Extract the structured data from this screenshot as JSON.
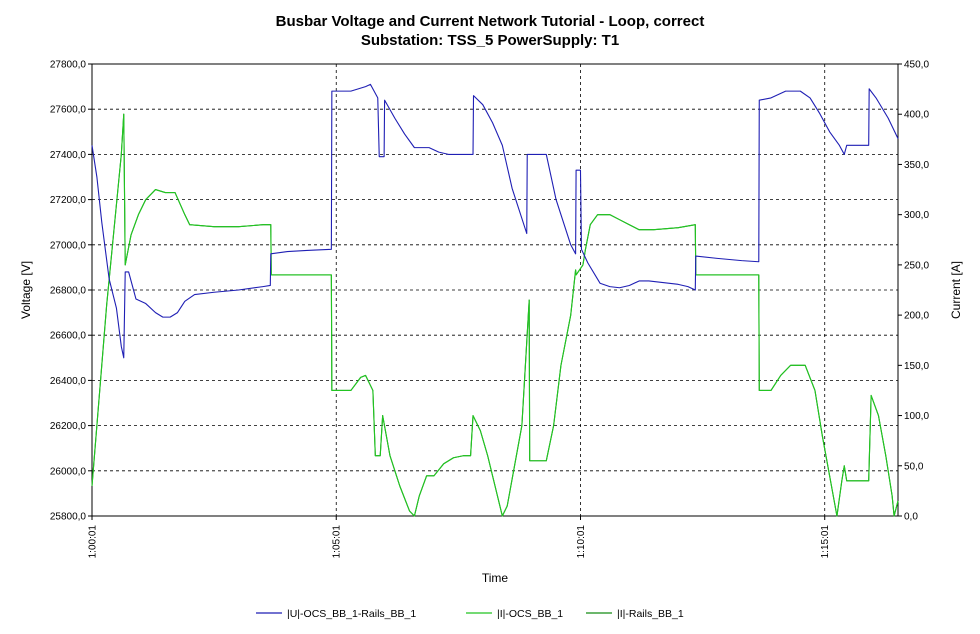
{
  "chart_data": {
    "type": "line",
    "title": "Busbar Voltage and Current Network Tutorial - Loop, correct",
    "subtitle": "Substation: TSS_5 PowerSupply: T1",
    "xlabel": "Time",
    "ylabel_left": "Voltage [V]",
    "ylabel_right": "Current [A]",
    "x_unit": "minutes after 1:00:00",
    "xlim": [
      1.0,
      17.5
    ],
    "x_ticks": [
      {
        "x": 1,
        "label": "1:00:01"
      },
      {
        "x": 6,
        "label": "1:05:01"
      },
      {
        "x": 11,
        "label": "1:10:01"
      },
      {
        "x": 16,
        "label": "1:15:01"
      }
    ],
    "ylim_left": [
      25800,
      27800
    ],
    "ylim_right": [
      0,
      450
    ],
    "y_ticks_left": [
      "25800,0",
      "26000,0",
      "26200,0",
      "26400,0",
      "26600,0",
      "26800,0",
      "27000,0",
      "27200,0",
      "27400,0",
      "27600,0",
      "27800,0"
    ],
    "y_ticks_right": [
      "0,0",
      "50,0",
      "100,0",
      "150,0",
      "200,0",
      "250,0",
      "300,0",
      "350,0",
      "400,0",
      "450,0"
    ],
    "grid": true,
    "legend_position": "bottom",
    "colors": {
      "voltage": "#1f1fb4",
      "ocs": "#22c422",
      "rails": "#148c14",
      "grid": "#000000"
    },
    "series": [
      {
        "name": "|U|-OCS_BB_1-Rails_BB_1",
        "axis": "left",
        "color": "#1f1fb4",
        "width": 1.1,
        "points": [
          [
            1.0,
            27440
          ],
          [
            1.1,
            27300
          ],
          [
            1.2,
            27100
          ],
          [
            1.35,
            26850
          ],
          [
            1.5,
            26720
          ],
          [
            1.6,
            26550
          ],
          [
            1.65,
            26500
          ],
          [
            1.68,
            26880
          ],
          [
            1.75,
            26880
          ],
          [
            1.9,
            26760
          ],
          [
            2.1,
            26740
          ],
          [
            2.3,
            26700
          ],
          [
            2.45,
            26680
          ],
          [
            2.6,
            26680
          ],
          [
            2.75,
            26700
          ],
          [
            2.9,
            26750
          ],
          [
            3.1,
            26780
          ],
          [
            3.5,
            26790
          ],
          [
            4.0,
            26800
          ],
          [
            4.5,
            26815
          ],
          [
            4.65,
            26820
          ],
          [
            4.66,
            26960
          ],
          [
            5.0,
            26970
          ],
          [
            5.4,
            26975
          ],
          [
            5.9,
            26980
          ],
          [
            5.91,
            27680
          ],
          [
            6.3,
            27680
          ],
          [
            6.6,
            27700
          ],
          [
            6.7,
            27710
          ],
          [
            6.85,
            27650
          ],
          [
            6.88,
            27390
          ],
          [
            6.98,
            27390
          ],
          [
            6.99,
            27640
          ],
          [
            7.2,
            27560
          ],
          [
            7.4,
            27490
          ],
          [
            7.6,
            27430
          ],
          [
            7.9,
            27430
          ],
          [
            8.1,
            27410
          ],
          [
            8.3,
            27400
          ],
          [
            8.8,
            27400
          ],
          [
            8.81,
            27660
          ],
          [
            9.0,
            27620
          ],
          [
            9.2,
            27540
          ],
          [
            9.4,
            27440
          ],
          [
            9.6,
            27250
          ],
          [
            9.9,
            27050
          ],
          [
            9.91,
            27400
          ],
          [
            10.3,
            27400
          ],
          [
            10.5,
            27200
          ],
          [
            10.8,
            27000
          ],
          [
            10.9,
            26960
          ],
          [
            10.91,
            27330
          ],
          [
            11.0,
            27330
          ],
          [
            11.02,
            26980
          ],
          [
            11.15,
            26920
          ],
          [
            11.4,
            26830
          ],
          [
            11.6,
            26815
          ],
          [
            11.8,
            26810
          ],
          [
            12.0,
            26820
          ],
          [
            12.2,
            26840
          ],
          [
            12.4,
            26840
          ],
          [
            12.8,
            26830
          ],
          [
            13.0,
            26825
          ],
          [
            13.2,
            26815
          ],
          [
            13.35,
            26800
          ],
          [
            13.36,
            26950
          ],
          [
            13.8,
            26940
          ],
          [
            14.3,
            26930
          ],
          [
            14.65,
            26925
          ],
          [
            14.66,
            27640
          ],
          [
            14.9,
            27650
          ],
          [
            15.2,
            27680
          ],
          [
            15.5,
            27680
          ],
          [
            15.7,
            27650
          ],
          [
            15.9,
            27580
          ],
          [
            16.1,
            27500
          ],
          [
            16.3,
            27440
          ],
          [
            16.4,
            27400
          ],
          [
            16.45,
            27440
          ],
          [
            16.9,
            27440
          ],
          [
            16.91,
            27690
          ],
          [
            17.05,
            27650
          ],
          [
            17.3,
            27560
          ],
          [
            17.5,
            27470
          ]
        ]
      },
      {
        "name": "|I|-OCS_BB_1",
        "axis": "right",
        "color": "#22c422",
        "width": 1.1,
        "points": [
          [
            1.0,
            30
          ],
          [
            1.1,
            90
          ],
          [
            1.2,
            150
          ],
          [
            1.3,
            210
          ],
          [
            1.4,
            260
          ],
          [
            1.5,
            310
          ],
          [
            1.6,
            360
          ],
          [
            1.65,
            400
          ],
          [
            1.68,
            250
          ],
          [
            1.8,
            280
          ],
          [
            1.95,
            300
          ],
          [
            2.1,
            315
          ],
          [
            2.3,
            325
          ],
          [
            2.5,
            322
          ],
          [
            2.7,
            322
          ],
          [
            2.9,
            300
          ],
          [
            3.0,
            290
          ],
          [
            3.5,
            288
          ],
          [
            4.0,
            288
          ],
          [
            4.5,
            290
          ],
          [
            4.66,
            290
          ],
          [
            4.67,
            240
          ],
          [
            5.0,
            240
          ],
          [
            5.5,
            240
          ],
          [
            5.9,
            240
          ],
          [
            5.91,
            125
          ],
          [
            6.3,
            125
          ],
          [
            6.5,
            138
          ],
          [
            6.6,
            140
          ],
          [
            6.75,
            125
          ],
          [
            6.8,
            60
          ],
          [
            6.9,
            60
          ],
          [
            6.95,
            100
          ],
          [
            7.1,
            60
          ],
          [
            7.3,
            30
          ],
          [
            7.5,
            5
          ],
          [
            7.6,
            0
          ],
          [
            7.7,
            20
          ],
          [
            7.85,
            40
          ],
          [
            8.0,
            40
          ],
          [
            8.2,
            52
          ],
          [
            8.4,
            58
          ],
          [
            8.6,
            60
          ],
          [
            8.75,
            60
          ],
          [
            8.8,
            100
          ],
          [
            8.95,
            85
          ],
          [
            9.1,
            60
          ],
          [
            9.3,
            20
          ],
          [
            9.4,
            0
          ],
          [
            9.5,
            10
          ],
          [
            9.65,
            50
          ],
          [
            9.8,
            90
          ],
          [
            9.95,
            215
          ],
          [
            9.96,
            55
          ],
          [
            10.3,
            55
          ],
          [
            10.45,
            90
          ],
          [
            10.6,
            150
          ],
          [
            10.8,
            200
          ],
          [
            10.9,
            245
          ],
          [
            10.91,
            240
          ],
          [
            11.05,
            250
          ],
          [
            11.1,
            265
          ],
          [
            11.2,
            290
          ],
          [
            11.35,
            300
          ],
          [
            11.6,
            300
          ],
          [
            11.8,
            295
          ],
          [
            12.0,
            290
          ],
          [
            12.2,
            285
          ],
          [
            12.5,
            285
          ],
          [
            13.0,
            287
          ],
          [
            13.35,
            290
          ],
          [
            13.36,
            240
          ],
          [
            13.8,
            240
          ],
          [
            14.3,
            240
          ],
          [
            14.65,
            240
          ],
          [
            14.66,
            125
          ],
          [
            14.9,
            125
          ],
          [
            15.1,
            140
          ],
          [
            15.3,
            150
          ],
          [
            15.6,
            150
          ],
          [
            15.8,
            125
          ],
          [
            15.95,
            80
          ],
          [
            16.1,
            40
          ],
          [
            16.25,
            0
          ],
          [
            16.35,
            35
          ],
          [
            16.4,
            50
          ],
          [
            16.45,
            35
          ],
          [
            16.9,
            35
          ],
          [
            16.95,
            120
          ],
          [
            17.1,
            100
          ],
          [
            17.25,
            60
          ],
          [
            17.38,
            20
          ],
          [
            17.42,
            0
          ],
          [
            17.5,
            15
          ]
        ]
      },
      {
        "name": "|I|-Rails_BB_1",
        "axis": "right",
        "color": "#148c14",
        "width": 1.1,
        "points": [
          [
            1.0,
            30
          ],
          [
            1.1,
            90
          ],
          [
            1.2,
            150
          ],
          [
            1.3,
            210
          ],
          [
            1.4,
            260
          ],
          [
            1.5,
            310
          ],
          [
            1.6,
            360
          ],
          [
            1.65,
            400
          ],
          [
            1.68,
            250
          ],
          [
            1.8,
            280
          ],
          [
            1.95,
            300
          ],
          [
            2.1,
            315
          ],
          [
            2.3,
            325
          ],
          [
            2.5,
            322
          ],
          [
            2.7,
            322
          ],
          [
            2.9,
            300
          ],
          [
            3.0,
            290
          ],
          [
            3.5,
            288
          ],
          [
            4.0,
            288
          ],
          [
            4.5,
            290
          ],
          [
            4.66,
            290
          ],
          [
            4.67,
            240
          ],
          [
            5.0,
            240
          ],
          [
            5.5,
            240
          ],
          [
            5.9,
            240
          ],
          [
            5.91,
            125
          ],
          [
            6.3,
            125
          ],
          [
            6.5,
            138
          ],
          [
            6.6,
            140
          ],
          [
            6.75,
            125
          ],
          [
            6.8,
            60
          ],
          [
            6.9,
            60
          ],
          [
            6.95,
            100
          ],
          [
            7.1,
            60
          ],
          [
            7.3,
            30
          ],
          [
            7.5,
            5
          ],
          [
            7.6,
            0
          ],
          [
            7.7,
            20
          ],
          [
            7.85,
            40
          ],
          [
            8.0,
            40
          ],
          [
            8.2,
            52
          ],
          [
            8.4,
            58
          ],
          [
            8.6,
            60
          ],
          [
            8.75,
            60
          ],
          [
            8.8,
            100
          ],
          [
            8.95,
            85
          ],
          [
            9.1,
            60
          ],
          [
            9.3,
            20
          ],
          [
            9.4,
            0
          ],
          [
            9.5,
            10
          ],
          [
            9.65,
            50
          ],
          [
            9.8,
            90
          ],
          [
            9.95,
            215
          ],
          [
            9.96,
            55
          ],
          [
            10.3,
            55
          ],
          [
            10.45,
            90
          ],
          [
            10.6,
            150
          ],
          [
            10.8,
            200
          ],
          [
            10.9,
            245
          ],
          [
            10.91,
            240
          ],
          [
            11.05,
            250
          ],
          [
            11.1,
            265
          ],
          [
            11.2,
            290
          ],
          [
            11.35,
            300
          ],
          [
            11.6,
            300
          ],
          [
            11.8,
            295
          ],
          [
            12.0,
            290
          ],
          [
            12.2,
            285
          ],
          [
            12.5,
            285
          ],
          [
            13.0,
            287
          ],
          [
            13.35,
            290
          ],
          [
            13.36,
            240
          ],
          [
            13.8,
            240
          ],
          [
            14.3,
            240
          ],
          [
            14.65,
            240
          ],
          [
            14.66,
            125
          ],
          [
            14.9,
            125
          ],
          [
            15.1,
            140
          ],
          [
            15.3,
            150
          ],
          [
            15.6,
            150
          ],
          [
            15.8,
            125
          ],
          [
            15.95,
            80
          ],
          [
            16.1,
            40
          ],
          [
            16.25,
            0
          ],
          [
            16.35,
            35
          ],
          [
            16.4,
            50
          ],
          [
            16.45,
            35
          ],
          [
            16.9,
            35
          ],
          [
            16.95,
            120
          ],
          [
            17.1,
            100
          ],
          [
            17.25,
            60
          ],
          [
            17.38,
            20
          ],
          [
            17.42,
            0
          ],
          [
            17.5,
            15
          ]
        ]
      }
    ]
  }
}
